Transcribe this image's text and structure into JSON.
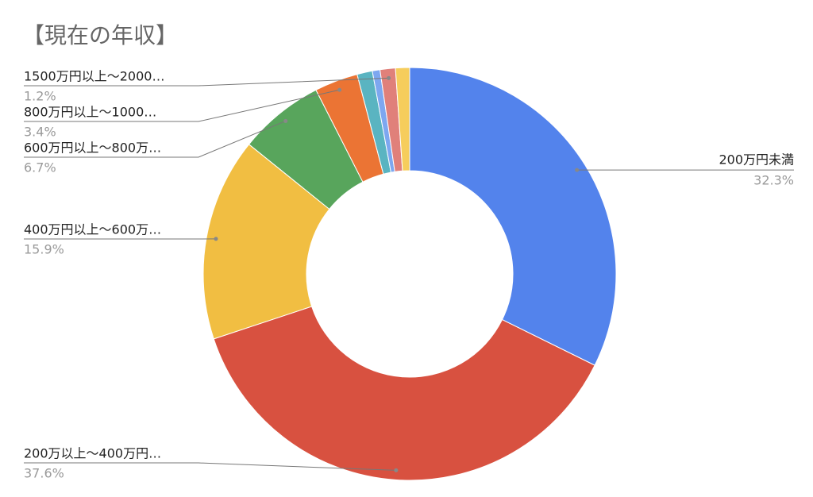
{
  "chart_data": {
    "type": "donut",
    "title": "【現在の年収】",
    "categories": [
      "200万円未満",
      "200万以上〜400万円…",
      "400万円以上〜600万…",
      "600万円以上〜800万…",
      "800万円以上〜1000…",
      null,
      null,
      "1500万円以上〜2000…",
      null
    ],
    "values": [
      32.3,
      37.6,
      15.9,
      6.7,
      3.4,
      1.2,
      0.6,
      1.2,
      1.1
    ],
    "value_labels": [
      "32.3%",
      "37.6%",
      "15.9%",
      "6.7%",
      "3.4%",
      null,
      null,
      "1.2%",
      null
    ],
    "colors": [
      "#5383ec",
      "#d85140",
      "#f1be42",
      "#58a55c",
      "#eb7434",
      "#5ab4c1",
      "#7da7f0",
      "#e0807a",
      "#f6cd5c"
    ]
  }
}
